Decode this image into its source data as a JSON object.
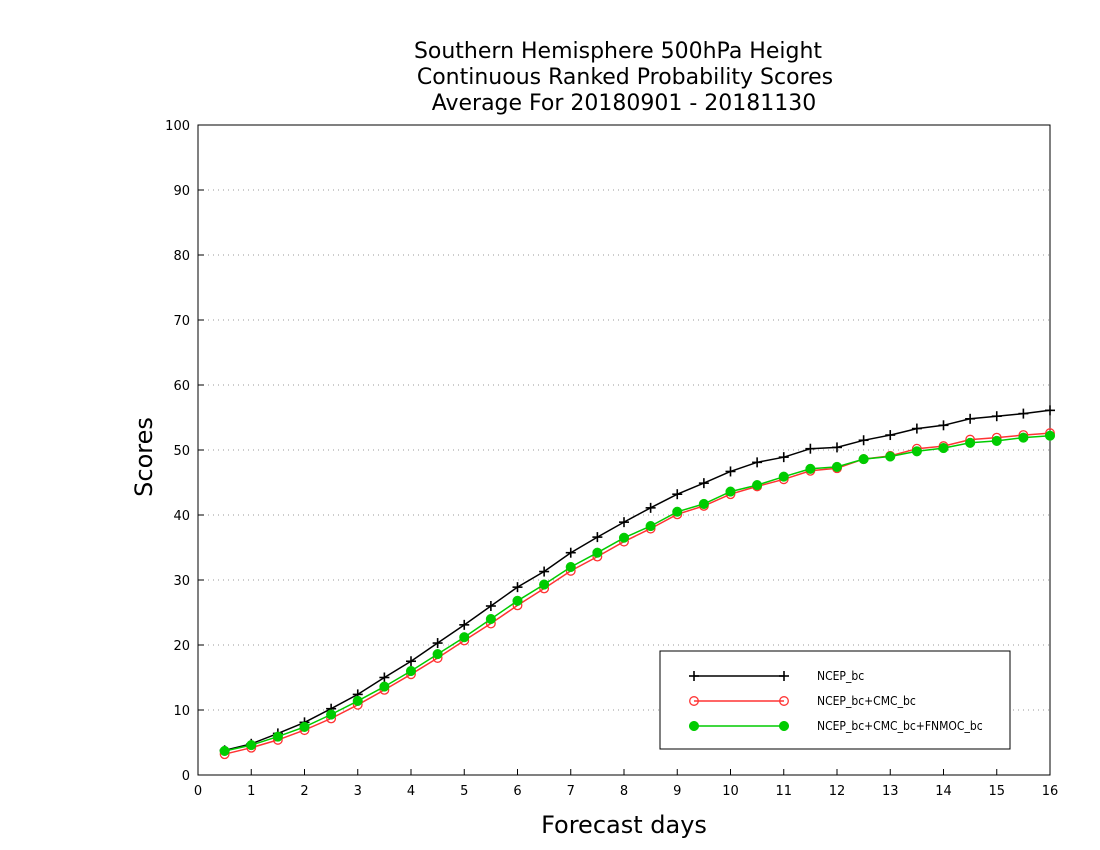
{
  "chart_data": {
    "type": "line",
    "title": [
      "Southern Hemisphere 500hPa Height",
      "Continuous Ranked Probability Scores",
      "Average For 20180901 - 20181130"
    ],
    "xlabel": "Forecast days",
    "ylabel": "Scores",
    "xlim": [
      0,
      16
    ],
    "ylim": [
      0,
      100
    ],
    "xticks": [
      0,
      1,
      2,
      3,
      4,
      5,
      6,
      7,
      8,
      9,
      10,
      11,
      12,
      13,
      14,
      15,
      16
    ],
    "yticks": [
      0,
      10,
      20,
      30,
      40,
      50,
      60,
      70,
      80,
      90,
      100
    ],
    "grid": "horizontal dotted",
    "legend_position": "bottom-right",
    "x": [
      0.5,
      1,
      1.5,
      2,
      2.5,
      3,
      3.5,
      4,
      4.5,
      5,
      5.5,
      6,
      6.5,
      7,
      7.5,
      8,
      8.5,
      9,
      9.5,
      10,
      10.5,
      11,
      11.5,
      12,
      12.5,
      13,
      13.5,
      14,
      14.5,
      15,
      15.5,
      16
    ],
    "series": [
      {
        "name": "NCEP_bc",
        "color": "#000000",
        "marker": "plus",
        "values": [
          3.8,
          4.8,
          6.4,
          8.1,
          10.2,
          12.4,
          15.0,
          17.5,
          20.3,
          23.1,
          26.0,
          28.9,
          31.3,
          34.2,
          36.6,
          38.9,
          41.1,
          43.2,
          44.9,
          46.7,
          48.1,
          48.9,
          50.2,
          50.4,
          51.5,
          52.3,
          53.3,
          53.8,
          54.8,
          55.2,
          55.6,
          56.1
        ]
      },
      {
        "name": "NCEP_bc+CMC_bc",
        "color": "#ff3333",
        "marker": "open-circle",
        "values": [
          3.2,
          4.2,
          5.4,
          6.9,
          8.7,
          10.8,
          13.1,
          15.5,
          18.0,
          20.7,
          23.3,
          26.1,
          28.7,
          31.4,
          33.6,
          35.9,
          37.9,
          40.1,
          41.4,
          43.2,
          44.4,
          45.5,
          46.8,
          47.2,
          48.6,
          49.1,
          50.2,
          50.6,
          51.6,
          51.9,
          52.3,
          52.6
        ]
      },
      {
        "name": "NCEP_bc+CMC_bc+FNMOC_bc",
        "color": "#00cc00",
        "marker": "filled-circle",
        "values": [
          3.7,
          4.6,
          5.9,
          7.4,
          9.3,
          11.4,
          13.6,
          16.0,
          18.6,
          21.2,
          24.0,
          26.8,
          29.3,
          32.0,
          34.2,
          36.5,
          38.3,
          40.5,
          41.7,
          43.6,
          44.6,
          45.9,
          47.1,
          47.4,
          48.6,
          49.0,
          49.8,
          50.3,
          51.1,
          51.4,
          51.9,
          52.2
        ]
      }
    ]
  }
}
